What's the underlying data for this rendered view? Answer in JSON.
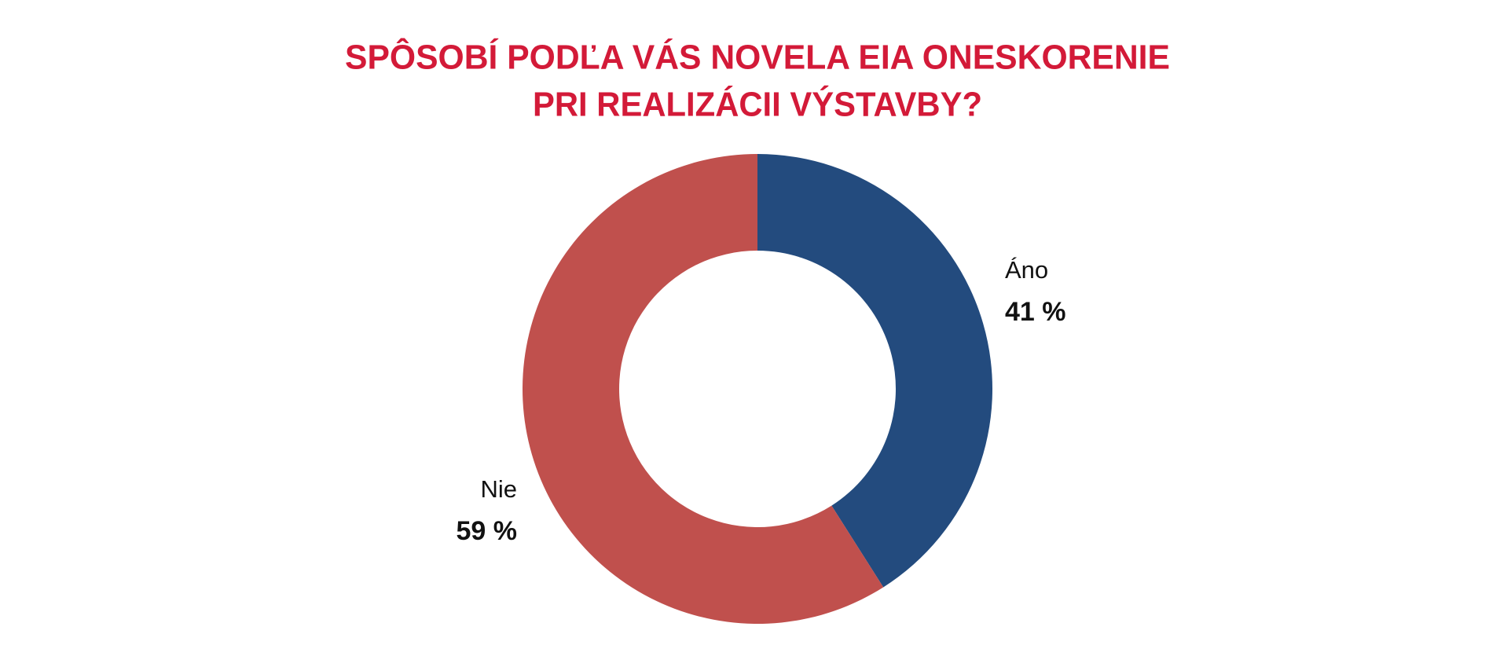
{
  "chart_data": {
    "type": "donut",
    "title": [
      "SPÔSOBÍ PODĽA VÁS NOVELA EIA ONESKORENIE",
      "PRI REALIZÁCII VÝSTAVBY?"
    ],
    "categories": [
      "Áno",
      "Nie"
    ],
    "values": [
      41,
      59
    ],
    "value_labels": [
      "41 %",
      "59 %"
    ],
    "colors": [
      "#234b7e",
      "#c0504d"
    ]
  }
}
